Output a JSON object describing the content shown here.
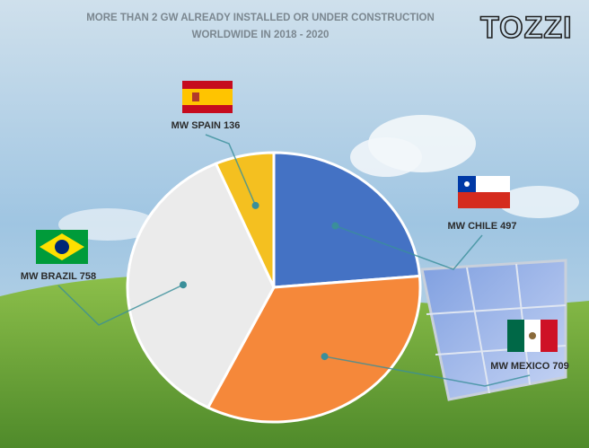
{
  "brand": "TOZZI",
  "chart_data": {
    "type": "pie",
    "title": [
      "MORE THAN 2 GW ALREADY INSTALLED OR UNDER CONSTRUCTION",
      "WORLDWIDE IN 2018 - 2020"
    ],
    "values": [
      497,
      709,
      758,
      136
    ],
    "value_labels": [
      "MW  CHILE 497",
      "MW  MEXICO 709",
      "MW  BRAZIL 758",
      "MW  SPAIN 136"
    ],
    "colors": [
      "#4472c4",
      "#f5883a",
      "#ebebeb",
      "#f4c020"
    ]
  }
}
